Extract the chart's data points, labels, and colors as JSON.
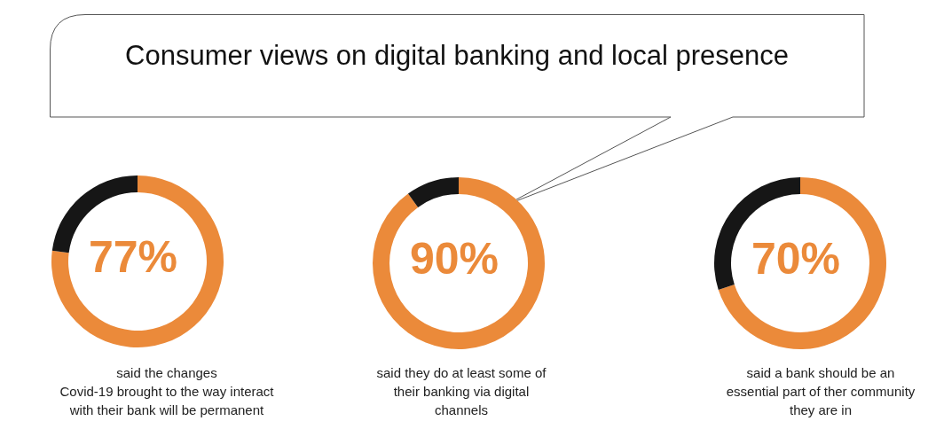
{
  "chart_data": [
    {
      "type": "donut",
      "title": "Consumer views on digital banking and local presence",
      "categories": [
        null,
        null
      ],
      "values": [
        77,
        23
      ],
      "colors": [
        "#eb8a3a",
        "#161616"
      ],
      "annotations": [
        "77%",
        "said the changes\nCovid-19 brought to the way interact\nwith their bank will be permanent"
      ],
      "legend": false
    },
    {
      "type": "donut",
      "categories": [
        null,
        null
      ],
      "values": [
        90,
        10
      ],
      "colors": [
        "#eb8a3a",
        "#161616"
      ],
      "annotations": [
        "90%",
        "said they do at least some of\ntheir banking via digital\nchannels"
      ],
      "legend": false
    },
    {
      "type": "donut",
      "categories": [
        null,
        null
      ],
      "values": [
        70,
        30
      ],
      "colors": [
        "#eb8a3a",
        "#161616"
      ],
      "annotations": [
        "70%",
        "said a bank should be an\nessential part of ther community\nthey are in"
      ],
      "legend": false
    }
  ]
}
